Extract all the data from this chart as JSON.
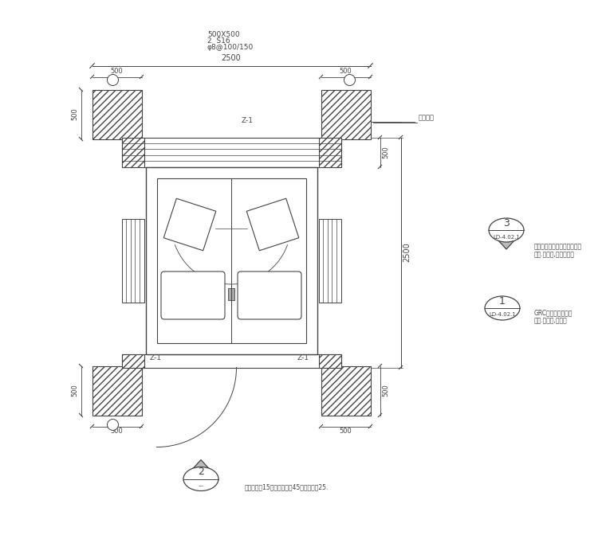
{
  "bg_color": "#ffffff",
  "line_color": "#444444",
  "title_texts": [
    "500X500",
    "2  Š16",
    "φ8@100/150"
  ],
  "dim_2500_top": "2500",
  "dim_2500_right": "2500",
  "note_top_right": "普管方异",
  "circle_ref_3": "LD-4.02.1",
  "circle_ref_1": "LD-4.02.1",
  "circle_ref_2": "---",
  "text_concrete": "混凝土结构表面仿花岗岩喷涂",
  "text_concrete2": "颜色.米白色,与建筑匹配",
  "text_grc": "GRC表面仿花岗岩喷",
  "text_grc2": "颜色.混黄色,与建筑",
  "note_bottom": "注意图示就15，具体详图就45分级详细就25."
}
